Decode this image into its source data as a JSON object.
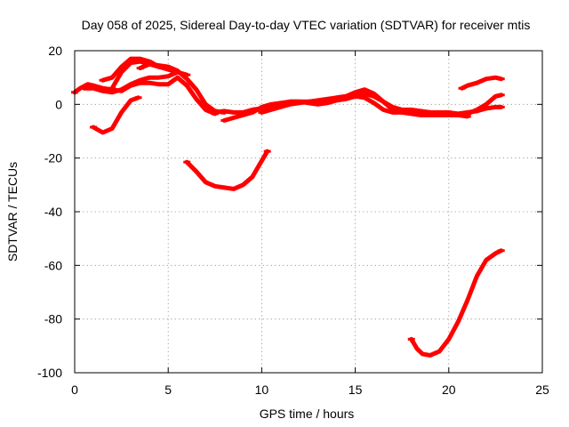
{
  "chart_data": {
    "type": "scatter",
    "title": "Day 058 of 2025, Sidereal Day-to-day VTEC variation (SDTVAR) for receiver mtis",
    "xlabel": "GPS time / hours",
    "ylabel": "SDTVAR / TECUs",
    "xlim": [
      0,
      25
    ],
    "ylim": [
      -100,
      20
    ],
    "xticks": [
      0,
      5,
      10,
      15,
      20,
      25
    ],
    "yticks": [
      20,
      0,
      -20,
      -40,
      -60,
      -80,
      -100
    ],
    "xtick_labels": [
      "0",
      "5",
      "10",
      "15",
      "20",
      "25"
    ],
    "ytick_labels": [
      "20",
      "0",
      "-20",
      "-40",
      "-60",
      "-80",
      "-100"
    ],
    "grid": true,
    "color": "#ff0000",
    "series": [
      {
        "name": "arc-1",
        "x": [
          0,
          0.3,
          0.7,
          1.0,
          1.5,
          2.0,
          2.5,
          3.0,
          3.5,
          4.0,
          4.5,
          5.0,
          5.5,
          6.0,
          6.5,
          7.0,
          7.5
        ],
        "y": [
          4.5,
          6,
          7.5,
          7,
          6,
          5.5,
          5,
          7,
          8,
          8,
          7.5,
          7.5,
          10,
          7,
          2,
          -2,
          -3.5
        ]
      },
      {
        "name": "arc-2",
        "x": [
          0.5,
          1.0,
          1.5,
          2.0,
          2.5,
          3.0,
          3.5,
          4.0,
          4.5,
          5.0,
          5.5,
          6.0
        ],
        "y": [
          6,
          6,
          5,
          4.5,
          5.5,
          7.5,
          9,
          10,
          10,
          10.5,
          12,
          11
        ]
      },
      {
        "name": "arc-3",
        "x": [
          1.5,
          2.0,
          2.5,
          3.0,
          3.5,
          4.0,
          4.5,
          5.0
        ],
        "y": [
          9,
          10,
          14,
          17,
          17,
          16,
          14,
          13.5
        ]
      },
      {
        "name": "arc-4",
        "x": [
          2.0,
          2.5,
          3.0,
          3.5,
          4.0,
          4.5,
          5.0,
          5.5
        ],
        "y": [
          6,
          12,
          15.5,
          16,
          15,
          14,
          13,
          12
        ]
      },
      {
        "name": "arc-5",
        "x": [
          3.5,
          4.0,
          4.5,
          5.0,
          5.5,
          6.0,
          6.5,
          7.0,
          7.5,
          8.0
        ],
        "y": [
          13.5,
          15,
          14.5,
          14,
          12.5,
          9.5,
          5.5,
          0,
          -2.5,
          -3
        ]
      },
      {
        "name": "arc-6",
        "x": [
          1.0,
          1.5,
          2.0,
          2.5,
          3.0,
          3.4
        ],
        "y": [
          -8.5,
          -10.5,
          -9,
          -3,
          1.5,
          2.5
        ]
      },
      {
        "name": "arc-7",
        "x": [
          7.5,
          8.0,
          8.5,
          9.0,
          9.5,
          10.0,
          10.5,
          11.0,
          11.5,
          12.0,
          12.5,
          13.0,
          13.5,
          14.0,
          14.5,
          15.0,
          15.5,
          16.0,
          16.5,
          17.0,
          17.5,
          18.0,
          18.5,
          19.0,
          19.5,
          20.0,
          20.5,
          21.0,
          21.5,
          22.0,
          22.5,
          22.8
        ],
        "y": [
          -3,
          -2.5,
          -3,
          -3,
          -2,
          -1.5,
          -1,
          0,
          1,
          1,
          1,
          1,
          1.5,
          2.5,
          3,
          4.5,
          5.5,
          4,
          1,
          -2,
          -2.5,
          -2.5,
          -3,
          -3,
          -3.5,
          -3.5,
          -4,
          -3.5,
          -2,
          0,
          3,
          3.5
        ]
      },
      {
        "name": "arc-8",
        "x": [
          8.0,
          8.5,
          9.0,
          9.5,
          10.0,
          10.5,
          11.0,
          11.5,
          12.0,
          12.5,
          13.0,
          13.5,
          14.0,
          14.5,
          15.0,
          15.5,
          16.0,
          16.5,
          17.0,
          17.5,
          18.0,
          18.5,
          19.0,
          19.5,
          20.0,
          20.5,
          21.0
        ],
        "y": [
          -6,
          -5,
          -4,
          -3,
          -1,
          0,
          0.5,
          1,
          1,
          0.5,
          0,
          0.5,
          1.5,
          2,
          3,
          2.5,
          0.5,
          -2,
          -3,
          -3,
          -3.5,
          -4,
          -4,
          -4,
          -4,
          -4,
          -4.5
        ]
      },
      {
        "name": "arc-9",
        "x": [
          10.0,
          10.5,
          11.0,
          11.5,
          12.0,
          12.5,
          13.0,
          13.5,
          14.0,
          14.5,
          15.0,
          15.5,
          16.0,
          16.5,
          17.0,
          17.5,
          18.0,
          18.5,
          19.0,
          19.5,
          20.0,
          20.5,
          21.0,
          21.5,
          22.0,
          22.5,
          22.8
        ],
        "y": [
          -3,
          -2,
          -1,
          0,
          0.5,
          1,
          1.5,
          2,
          2.5,
          3,
          3.5,
          4,
          3,
          1,
          -1,
          -2,
          -2,
          -2.5,
          -3,
          -3,
          -3,
          -3.5,
          -3,
          -2.5,
          -1.5,
          -1,
          -1
        ]
      },
      {
        "name": "arc-10",
        "x": [
          20.7,
          21.0,
          21.5,
          22.0,
          22.5,
          22.8
        ],
        "y": [
          6,
          7,
          8,
          9.5,
          10,
          9.5
        ]
      },
      {
        "name": "arc-11",
        "x": [
          6.0,
          6.5,
          7.0,
          7.5,
          8.0,
          8.5,
          9.0,
          9.5,
          10.0,
          10.3
        ],
        "y": [
          -21.5,
          -25,
          -29,
          -30.5,
          -31,
          -31.5,
          -30,
          -27,
          -21,
          -17.5
        ]
      },
      {
        "name": "arc-12",
        "x": [
          18.0,
          18.3,
          18.6,
          19.0,
          19.5,
          20.0,
          20.5,
          21.0,
          21.5,
          22.0,
          22.5,
          22.8
        ],
        "y": [
          -87.5,
          -91,
          -93,
          -93.5,
          -92,
          -87.5,
          -81,
          -73,
          -64,
          -58,
          -55.5,
          -54.5
        ]
      }
    ]
  }
}
